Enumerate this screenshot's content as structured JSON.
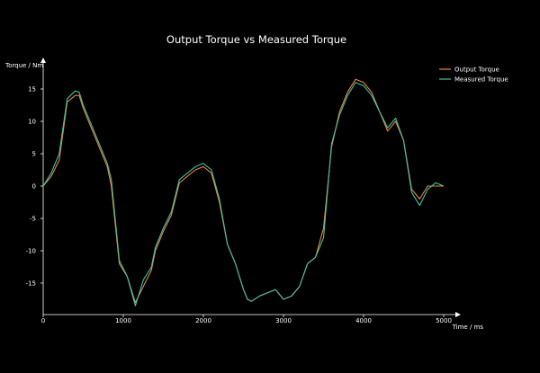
{
  "chart_data": {
    "type": "line",
    "title": "Output Torque vs Measured Torque",
    "xlabel": "Time / ms",
    "ylabel": "Torque / Nm",
    "xlim": [
      0,
      5000
    ],
    "ylim": [
      -19,
      19
    ],
    "xticks": [
      0,
      1000,
      2000,
      3000,
      4000,
      5000
    ],
    "yticks": [
      -15,
      -10,
      -5,
      0,
      5,
      10,
      15
    ],
    "grid": false,
    "legend_position": "top-right",
    "series": [
      {
        "name": "Output Torque",
        "color": "#e8893c",
        "points": [
          [
            0,
            0
          ],
          [
            100,
            1.5
          ],
          [
            200,
            4
          ],
          [
            300,
            13
          ],
          [
            400,
            14
          ],
          [
            450,
            14
          ],
          [
            500,
            12
          ],
          [
            600,
            9
          ],
          [
            700,
            6
          ],
          [
            800,
            3
          ],
          [
            850,
            0
          ],
          [
            950,
            -12
          ],
          [
            1050,
            -14
          ],
          [
            1150,
            -18
          ],
          [
            1250,
            -15.5
          ],
          [
            1350,
            -13
          ],
          [
            1400,
            -10
          ],
          [
            1500,
            -7
          ],
          [
            1600,
            -4.5
          ],
          [
            1700,
            0.5
          ],
          [
            1800,
            1.5
          ],
          [
            1900,
            2.5
          ],
          [
            2000,
            3
          ],
          [
            2100,
            2
          ],
          [
            2200,
            -2.5
          ],
          [
            2300,
            -9
          ],
          [
            2400,
            -12
          ],
          [
            2500,
            -16
          ],
          [
            2550,
            -17.5
          ],
          [
            2600,
            -17.8
          ],
          [
            2700,
            -17
          ],
          [
            2800,
            -16.5
          ],
          [
            2900,
            -16
          ],
          [
            3000,
            -17.5
          ],
          [
            3100,
            -17
          ],
          [
            3200,
            -15.5
          ],
          [
            3300,
            -12
          ],
          [
            3400,
            -11
          ],
          [
            3500,
            -6.5
          ],
          [
            3600,
            6
          ],
          [
            3700,
            11.5
          ],
          [
            3800,
            14.5
          ],
          [
            3900,
            16.5
          ],
          [
            4000,
            16
          ],
          [
            4100,
            14.5
          ],
          [
            4200,
            11.5
          ],
          [
            4300,
            8.5
          ],
          [
            4400,
            10
          ],
          [
            4500,
            7
          ],
          [
            4600,
            -0.5
          ],
          [
            4700,
            -2
          ],
          [
            4800,
            0
          ],
          [
            4900,
            0
          ],
          [
            5000,
            0
          ]
        ]
      },
      {
        "name": "Measured Torque",
        "color": "#43c1a5",
        "points": [
          [
            0,
            0
          ],
          [
            100,
            2
          ],
          [
            200,
            5
          ],
          [
            300,
            13.5
          ],
          [
            400,
            14.7
          ],
          [
            450,
            14.5
          ],
          [
            500,
            12.5
          ],
          [
            600,
            9.5
          ],
          [
            700,
            6.5
          ],
          [
            800,
            3.5
          ],
          [
            850,
            1
          ],
          [
            950,
            -11.5
          ],
          [
            1050,
            -14
          ],
          [
            1150,
            -18.5
          ],
          [
            1250,
            -14.5
          ],
          [
            1350,
            -12.5
          ],
          [
            1400,
            -9.5
          ],
          [
            1500,
            -6.5
          ],
          [
            1600,
            -4
          ],
          [
            1700,
            1
          ],
          [
            1800,
            2
          ],
          [
            1900,
            3
          ],
          [
            2000,
            3.5
          ],
          [
            2100,
            2.5
          ],
          [
            2200,
            -2
          ],
          [
            2300,
            -9
          ],
          [
            2400,
            -12
          ],
          [
            2500,
            -16
          ],
          [
            2550,
            -17.5
          ],
          [
            2600,
            -17.8
          ],
          [
            2700,
            -17
          ],
          [
            2800,
            -16.5
          ],
          [
            2900,
            -16
          ],
          [
            3000,
            -17.5
          ],
          [
            3100,
            -17
          ],
          [
            3200,
            -15.5
          ],
          [
            3300,
            -12
          ],
          [
            3400,
            -11
          ],
          [
            3500,
            -8
          ],
          [
            3600,
            6.5
          ],
          [
            3700,
            11
          ],
          [
            3800,
            14
          ],
          [
            3900,
            16
          ],
          [
            4000,
            15.5
          ],
          [
            4100,
            14
          ],
          [
            4200,
            11.5
          ],
          [
            4300,
            9
          ],
          [
            4400,
            10.5
          ],
          [
            4500,
            7
          ],
          [
            4600,
            -1
          ],
          [
            4700,
            -3
          ],
          [
            4800,
            -0.5
          ],
          [
            4900,
            0.5
          ],
          [
            5000,
            0
          ]
        ]
      }
    ]
  }
}
